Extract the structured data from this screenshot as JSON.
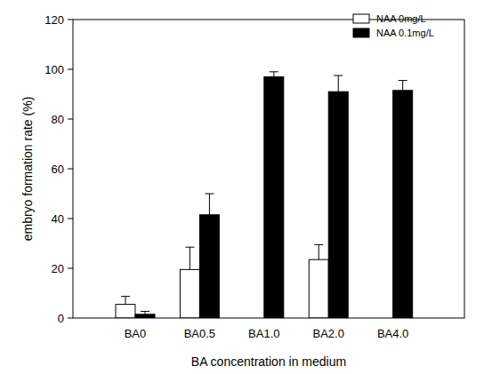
{
  "chart_data": {
    "type": "bar",
    "categories": [
      "BA0",
      "BA0.5",
      "BA1.0",
      "BA2.0",
      "BA4.0"
    ],
    "series": [
      {
        "name": "NAA 0mg/L",
        "color": "#ffffff",
        "values": [
          5.5,
          19.5,
          0,
          23.5,
          0
        ],
        "errors": [
          3.2,
          9,
          null,
          6,
          null
        ]
      },
      {
        "name": "NAA 0.1mg/L",
        "color": "#000000",
        "values": [
          1.5,
          41.5,
          97,
          91,
          91.5
        ],
        "errors": [
          1.2,
          8.5,
          2,
          6.5,
          4
        ]
      }
    ],
    "x_label": "BA concentration in medium",
    "y_label": "embryo formation rate (%)",
    "ylim": [
      0,
      120
    ],
    "yticks": [
      0,
      20,
      40,
      60,
      80,
      100,
      120
    ],
    "legend": "upper right",
    "grid": false
  }
}
